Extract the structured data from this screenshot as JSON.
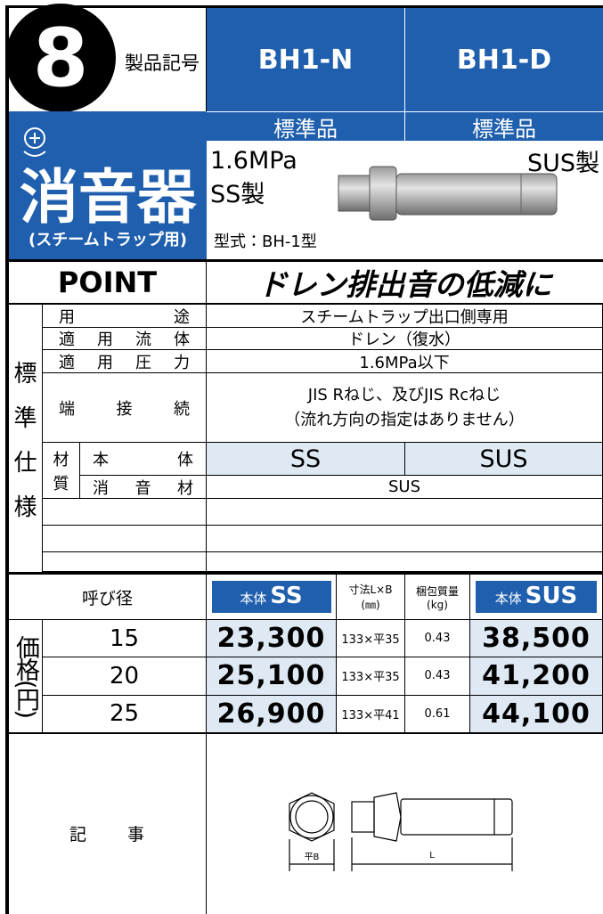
{
  "header": {
    "number": "8",
    "label": "製品記号",
    "models": [
      "BH1-N",
      "BH1-D"
    ],
    "grades": [
      "標準品",
      "標準品"
    ]
  },
  "product": {
    "name": "消音器",
    "subtitle": "(スチームトラップ用)",
    "pressure": "1.6MPa",
    "material_left": "SS製",
    "material_right": "SUS製",
    "model": "型式：BH-1型"
  },
  "point": {
    "label": "POINT",
    "text": "ドレン排出音の低減に"
  },
  "spec": {
    "section": "標準仕様",
    "rows": [
      {
        "label": "用途",
        "value": "スチームトラップ出口側専用"
      },
      {
        "label": "適用流体",
        "value": "ドレン（復水）"
      },
      {
        "label": "適用圧力",
        "value": "1.6MPa以下"
      },
      {
        "label": "端接続",
        "lines": [
          "JIS Rねじ、及びJIS Rcねじ",
          "（流れ方向の指定はありません）"
        ]
      }
    ],
    "material": {
      "label": "材質",
      "body": {
        "label": "本体",
        "values": [
          "SS",
          "SUS"
        ]
      },
      "silencer": {
        "label": "消音材",
        "value": "SUS"
      }
    }
  },
  "price": {
    "section": "価格(円)",
    "header": {
      "size": "呼び径",
      "ss_prefix": "本体",
      "ss": "SS",
      "dims": [
        "寸法L×B",
        "(㎜)"
      ],
      "weight": [
        "梱包質量",
        "(kg)"
      ],
      "sus_prefix": "本体",
      "sus": "SUS"
    },
    "rows": [
      {
        "size": "15",
        "ss": "23,300",
        "dims": "133×平35",
        "weight": "0.43",
        "sus": "38,500"
      },
      {
        "size": "20",
        "ss": "25,100",
        "dims": "133×平35",
        "weight": "0.43",
        "sus": "41,200"
      },
      {
        "size": "25",
        "ss": "26,900",
        "dims": "133×平41",
        "weight": "0.61",
        "sus": "44,100"
      }
    ]
  },
  "notes": {
    "label": "記事",
    "drawing": {
      "width": "平B",
      "length": "L"
    }
  }
}
